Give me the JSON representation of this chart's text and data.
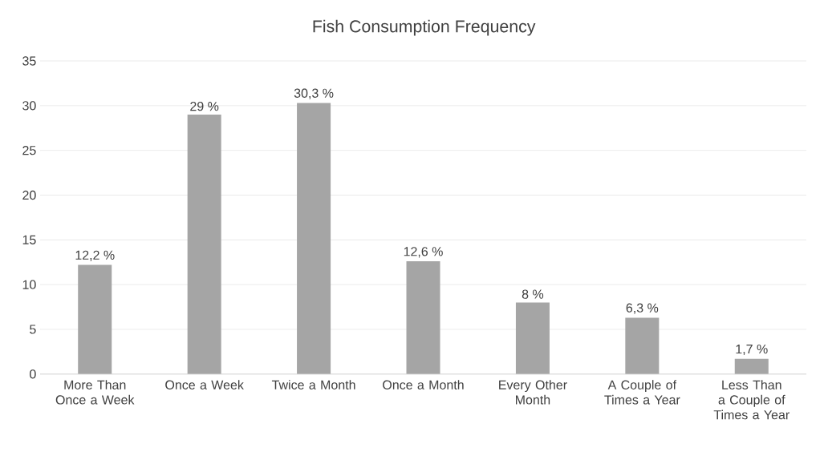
{
  "chart_data": {
    "type": "bar",
    "title": "Fish Consumption Frequency",
    "categories": [
      "More Than Once a Week",
      "Once a Week",
      "Twice a Month",
      "Once a Month",
      "Every Other Month",
      "A Couple of Times a Year",
      "Less Than a Couple of Times a Year"
    ],
    "values": [
      12.2,
      29,
      30.3,
      12.6,
      8,
      6.3,
      1.7
    ],
    "value_labels": [
      "12,2 %",
      "29 %",
      "30,3 %",
      "12,6 %",
      "8 %",
      "6,3 %",
      "1,7 %"
    ],
    "color": "#a5a5a5",
    "ylim": [
      0,
      35
    ],
    "yticks": [
      0,
      5,
      10,
      15,
      20,
      25,
      30,
      35
    ],
    "grid": "y"
  }
}
